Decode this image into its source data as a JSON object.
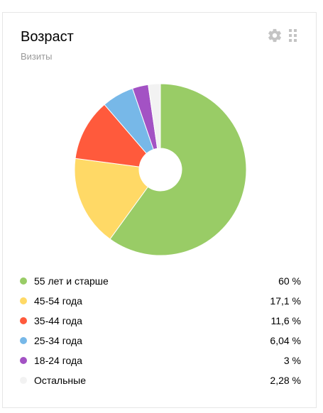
{
  "widget": {
    "title": "Возраст",
    "subtitle": "Визиты",
    "settings_icon": "gear-icon",
    "drag_icon": "grip-icon"
  },
  "chart_data": {
    "type": "pie",
    "title": "Возраст",
    "subtitle": "Визиты",
    "donut": true,
    "legend_position": "bottom",
    "categories": [
      "55 лет и старше",
      "45-54 года",
      "35-44 года",
      "25-34 года",
      "18-24 года",
      "Остальные"
    ],
    "values": [
      60,
      17.1,
      11.6,
      6.04,
      3,
      2.28
    ],
    "value_labels": [
      "60 %",
      "17,1 %",
      "11,6 %",
      "6,04 %",
      "3 %",
      "2,28 %"
    ],
    "colors": [
      "#99cc66",
      "#ffd966",
      "#ff5a3c",
      "#77b8e8",
      "#a352c4",
      "#f2f2f2"
    ]
  }
}
